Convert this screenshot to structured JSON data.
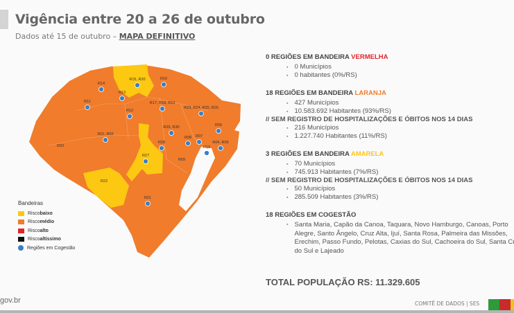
{
  "header": {
    "title": "Vigência entre 20 a 26 de outubro",
    "subtitle": "Dados até 15 de outubro – ",
    "subtitle_emph": "MAPA DEFINITIVO"
  },
  "colors": {
    "orange": "#f07c2c",
    "yellow": "#fcc812",
    "red": "#e3242b",
    "black": "#111111",
    "blue": "#3a7fc2"
  },
  "map": {
    "regions": [
      "R14",
      "R15, R20",
      "R16",
      "R13",
      "R11",
      "R12",
      "R17, R18, R19",
      "R23, R24, R25, R26",
      "R01, R02",
      "R29, R30",
      "R06",
      "R03",
      "R28",
      "R08",
      "R07",
      "R04, R05",
      "R10",
      "R27",
      "R09",
      "R22",
      "R21"
    ]
  },
  "legend": {
    "title": "Bandeiras",
    "items": [
      {
        "pre": "Risco ",
        "bold": "baixo"
      },
      {
        "pre": "Risco ",
        "bold": "médio"
      },
      {
        "pre": "Risco ",
        "bold": "alto"
      },
      {
        "pre": "Risco ",
        "bold": "altíssimo"
      },
      {
        "pre": "Regiões em Cogestão",
        "bold": ""
      }
    ]
  },
  "sections": {
    "red": {
      "title": "0 REGIÕES EM BANDEIRA ",
      "color_word": "VERMELHA",
      "items": [
        "0 Municípios",
        "0 habitantes (0%/RS)"
      ]
    },
    "orange": {
      "title": "18 REGIÕES EM BANDEIRA ",
      "color_word": "LARANJA",
      "items": [
        "427 Municípios",
        "10.583.692 Habitantes (93%/RS)"
      ],
      "note": "//  SEM REGISTRO DE HOSPITALIZAÇÕES E ÓBITOS NOS 14 DIAS",
      "note_items": [
        "216 Municípios",
        "1.227.740  Habitantes (11%/RS)"
      ]
    },
    "yellow": {
      "title": "3 REGIÕES EM BANDEIRA ",
      "color_word": "AMARELA",
      "items": [
        "70 Municípios",
        "745.913 Habitantes (7%/RS)"
      ],
      "note": "//  SEM REGISTRO DE HOSPITALIZAÇÕES E ÓBITOS NOS 14 DIAS",
      "note_items": [
        "50 Municípios",
        "285.509 Habitantes (3%/RS)"
      ]
    },
    "cogestao": {
      "title": "18 REGIÕES EM COGESTÃO",
      "text": "Santa Maria, Capão da Canoa, Taquara, Novo Hamburgo, Canoas, Porto Alegre, Santo Ângelo, Cruz Alta, Ijuí, Santa Rosa, Palmeira das Missões, Erechim, Passo Fundo, Pelotas, Caxias do Sul, Cachoeira do Sul, Santa Cruz do Sul e Lajeado"
    }
  },
  "total": "TOTAL POPULAÇÃO RS: 11.329.605",
  "footer": {
    "site": "gov.br",
    "credit": "COMITÊ DE DADOS |  SES"
  }
}
